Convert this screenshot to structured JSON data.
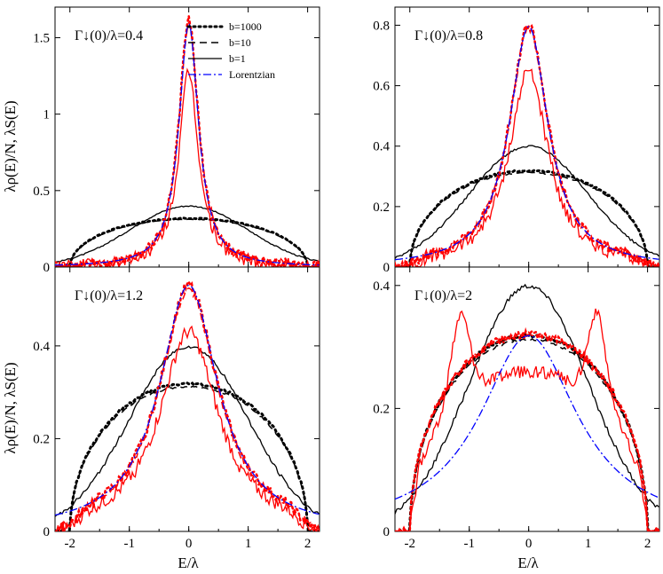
{
  "chart_data": {
    "type": "line",
    "ylabel_top": "λρ(E)/N, λS(E)",
    "ylabel_bottom": "λρ(E)/N, λS(E)",
    "xlabel": "E/λ",
    "legend": [
      "b=1000",
      "b=10",
      "b=1",
      "Lorentzian"
    ],
    "colors": {
      "black": "#000000",
      "red": "#ff0000",
      "blue": "#0000ff"
    },
    "panels": [
      {
        "label": "Γ↓(0)/λ=0.4",
        "gamma": 0.4,
        "xlim": [
          -2.25,
          2.2
        ],
        "ylim": [
          0,
          1.7
        ],
        "yticks": [
          0,
          0.5,
          1,
          1.5
        ],
        "ytick_labels": [
          "0",
          "0.5",
          "1",
          "1.5"
        ],
        "xticks": [
          -2,
          -1,
          0,
          1,
          2
        ],
        "show_legend": true,
        "show_xtick_labels": false,
        "red_b1_peak": 1.27,
        "red_b1000_peak": 1.62,
        "red_b10_peak": 1.6
      },
      {
        "label": "Γ↓(0)/λ=0.8",
        "gamma": 0.8,
        "xlim": [
          -2.25,
          2.2
        ],
        "ylim": [
          0,
          0.86
        ],
        "yticks": [
          0,
          0.2,
          0.4,
          0.6,
          0.8
        ],
        "ytick_labels": [
          "0",
          "0.2",
          "0.4",
          "0.6",
          "0.8"
        ],
        "xticks": [
          -2,
          -1,
          0,
          1,
          2
        ],
        "show_legend": false,
        "show_xtick_labels": false,
        "red_b1_peak": 0.65,
        "red_b1000_peak": 0.8,
        "red_b10_peak": 0.79
      },
      {
        "label": "Γ↓(0)/λ=1.2",
        "gamma": 1.2,
        "xlim": [
          -2.25,
          2.2
        ],
        "ylim": [
          0,
          0.57
        ],
        "yticks": [
          0,
          0.2,
          0.4
        ],
        "ytick_labels": [
          "0",
          "0.2",
          "0.4"
        ],
        "xticks": [
          -2,
          -1,
          0,
          1,
          2
        ],
        "xtick_labels": [
          "-2",
          "-1",
          "0",
          "1",
          "2"
        ],
        "show_legend": false,
        "show_xtick_labels": true,
        "red_b1_peak": 0.43,
        "red_b1000_peak": 0.53,
        "red_b10_peak": 0.52
      },
      {
        "label": "Γ↓(0)/λ=2",
        "gamma": 2.0,
        "xlim": [
          -2.25,
          2.2
        ],
        "ylim": [
          0,
          0.43
        ],
        "yticks": [
          0,
          0.2,
          0.4
        ],
        "ytick_labels": [
          "0",
          "0.2",
          "0.4"
        ],
        "xticks": [
          -2,
          -1,
          0,
          1,
          2
        ],
        "xtick_labels": [
          "-2",
          "-1",
          "0",
          "1",
          "2"
        ],
        "show_legend": false,
        "show_xtick_labels": true,
        "red_b1_peak": 0.38,
        "red_b1000_peak": 0.32,
        "red_b10_peak": 0.32
      }
    ]
  }
}
